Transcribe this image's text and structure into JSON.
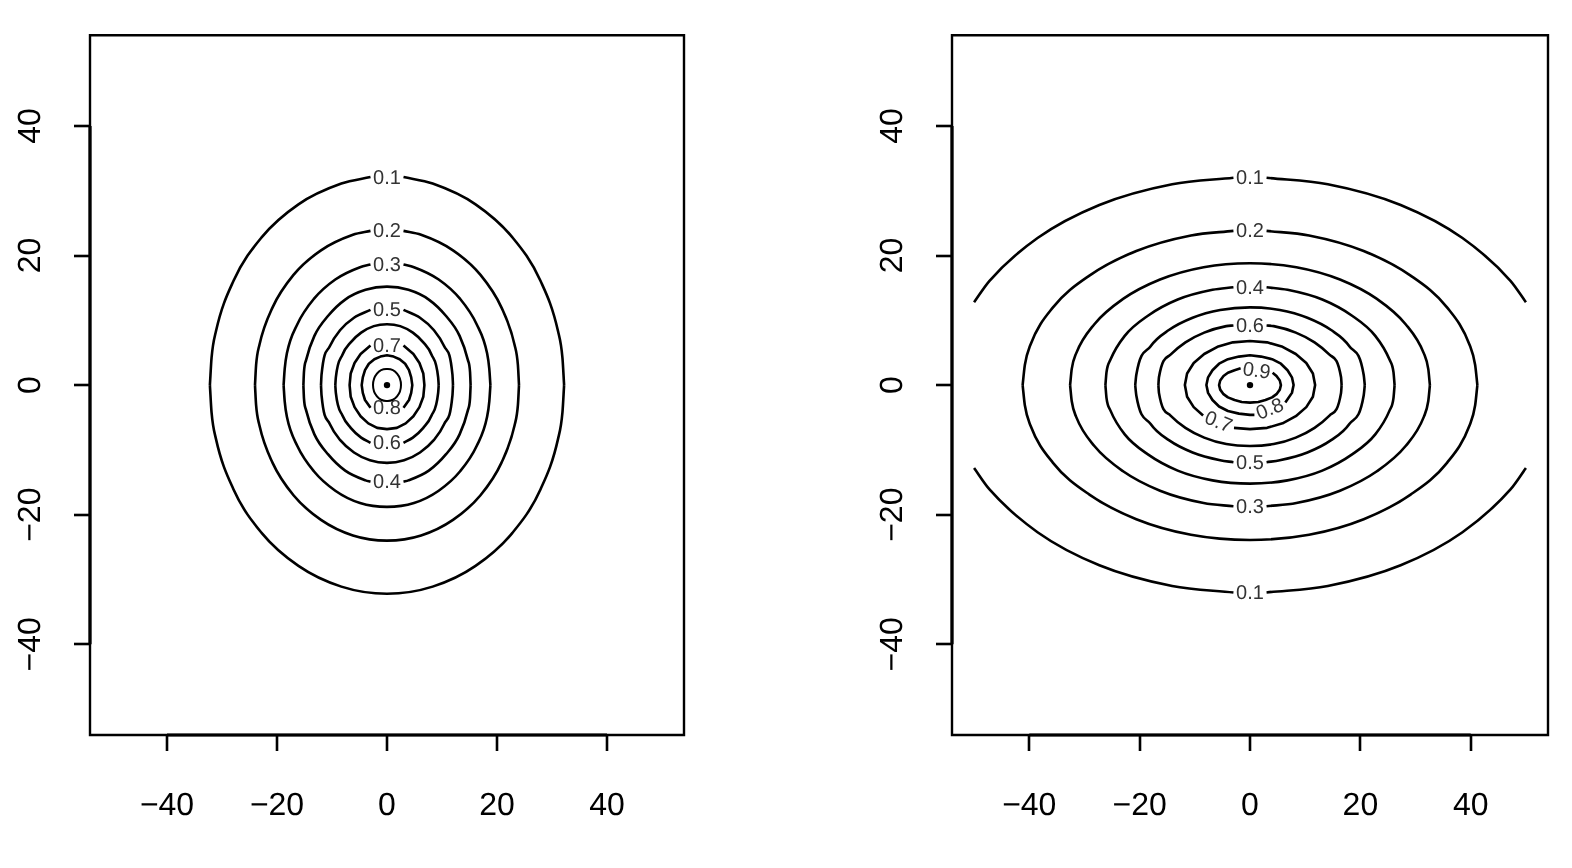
{
  "chart_data": [
    {
      "type": "line",
      "xlim": [
        -54,
        54
      ],
      "ylim": [
        -54,
        54
      ],
      "xticks": [
        -40,
        -20,
        0,
        20,
        40
      ],
      "yticks": [
        -40,
        -20,
        0,
        20,
        40
      ],
      "grid": false,
      "legend": false,
      "series": [
        {
          "name": "0.1",
          "color": "#000000",
          "x": [
            3,
            8.3,
            16.1,
            22.8,
            27.9,
            31.1,
            31.9,
            32.2
          ],
          "values": [
            32.1,
            31.1,
            27.9,
            22.8,
            16.1,
            8.3,
            4.2,
            0
          ]
        },
        {
          "color": "#000000",
          "x": [
            32.2,
            31.9,
            31.1,
            27.9,
            22.8,
            16.1,
            8.3,
            0,
            -8.3,
            -16.1,
            -22.8,
            -27.9,
            -31.1,
            -31.9,
            -32.2
          ],
          "values": [
            0,
            -4.2,
            -8.3,
            -16.1,
            -22.8,
            -27.9,
            -31.1,
            -32.2,
            -31.1,
            -27.9,
            -22.8,
            -16.1,
            -8.3,
            -4.2,
            0
          ]
        },
        {
          "color": "#000000",
          "x": [
            -32.2,
            -31.9,
            -31.1,
            -27.9,
            -22.8,
            -16.1,
            -8.3,
            -3
          ],
          "values": [
            0,
            4.2,
            8.3,
            16.1,
            22.8,
            27.9,
            31.1,
            32.1
          ]
        },
        {
          "name": "0.2",
          "color": "#000000",
          "x": [
            3,
            6.2,
            12,
            17,
            20.8,
            23.2,
            23.8,
            24
          ],
          "values": [
            23.8,
            23.2,
            20.8,
            17,
            12,
            6.2,
            3.1,
            0
          ]
        },
        {
          "color": "#000000",
          "x": [
            24,
            23.8,
            23.2,
            20.8,
            17,
            12,
            6.2,
            0,
            -6.2,
            -12,
            -17,
            -20.8,
            -23.2,
            -23.8,
            -24
          ],
          "values": [
            0,
            -3.1,
            -6.2,
            -12,
            -17,
            -20.8,
            -23.2,
            -24,
            -23.2,
            -20.8,
            -17,
            -12,
            -6.2,
            -3.1,
            0
          ]
        },
        {
          "color": "#000000",
          "x": [
            -24,
            -23.8,
            -23.2,
            -20.8,
            -17,
            -12,
            -6.2,
            -3
          ],
          "values": [
            0,
            3.1,
            6.2,
            12,
            17,
            20.8,
            23.2,
            23.8
          ]
        },
        {
          "name": "0.3",
          "color": "#000000",
          "x": [
            3,
            4.9,
            9.4,
            13.3,
            16.3,
            18.2,
            18.6,
            18.8
          ],
          "values": [
            18.6,
            18.2,
            16.3,
            13.3,
            9.4,
            4.9,
            2.5,
            0
          ]
        },
        {
          "color": "#000000",
          "x": [
            18.8,
            18.6,
            18.2,
            16.3,
            13.3,
            9.4,
            4.9,
            0,
            -4.9,
            -9.4,
            -13.3,
            -16.3,
            -18.2,
            -18.6,
            -18.8
          ],
          "values": [
            0,
            -2.5,
            -4.9,
            -9.4,
            -13.3,
            -16.3,
            -18.2,
            -18.8,
            -18.2,
            -16.3,
            -13.3,
            -9.4,
            -4.9,
            -2.5,
            0
          ]
        },
        {
          "color": "#000000",
          "x": [
            -18.8,
            -18.6,
            -18.2,
            -16.3,
            -13.3,
            -9.4,
            -4.9,
            -3
          ],
          "values": [
            0,
            2.5,
            4.9,
            9.4,
            13.3,
            16.3,
            18.2,
            18.6
          ]
        },
        {
          "name": "0.4",
          "color": "#000000",
          "x": [
            3,
            3.9,
            7.6,
            10.7,
            13.2,
            14.7,
            15.1,
            15.2
          ],
          "values": [
            -14.9,
            -14.7,
            -13.2,
            -10.7,
            -7.6,
            -3.9,
            -2,
            0
          ]
        },
        {
          "color": "#000000",
          "x": [
            15.2,
            15.1,
            14.7,
            13.2,
            10.7,
            7.6,
            3.9,
            0,
            -3.9,
            -7.6,
            -10.7,
            -13.2,
            -14.7,
            -15.1,
            -15.2
          ],
          "values": [
            0,
            2,
            3.9,
            7.6,
            10.7,
            13.2,
            14.7,
            15.2,
            14.7,
            13.2,
            10.7,
            7.6,
            3.9,
            2,
            0
          ]
        },
        {
          "color": "#000000",
          "x": [
            -15.2,
            -15.1,
            -14.7,
            -13.2,
            -10.7,
            -7.6,
            -3.9,
            -3
          ],
          "values": [
            0,
            -2,
            -3.9,
            -7.6,
            -10.7,
            -13.2,
            -14.7,
            -14.9
          ]
        },
        {
          "name": "0.5",
          "color": "#000000",
          "x": [
            3,
            6,
            8.5,
            10.4,
            11.9,
            12
          ],
          "values": [
            11.6,
            10.4,
            8.5,
            6,
            1.6,
            0
          ]
        },
        {
          "color": "#000000",
          "x": [
            12,
            11.9,
            10.4,
            8.5,
            6,
            3.1,
            0,
            -3.1,
            -6,
            -8.5,
            -10.4,
            -11.9,
            -12
          ],
          "values": [
            0,
            -1.6,
            -6,
            -8.5,
            -10.4,
            -11.6,
            -12,
            -11.6,
            -10.4,
            -8.5,
            -6,
            -1.6,
            0
          ]
        },
        {
          "color": "#000000",
          "x": [
            -12,
            -11.9,
            -10.4,
            -8.5,
            -6,
            -3
          ],
          "values": [
            0,
            1.6,
            6,
            8.5,
            10.4,
            11.6
          ]
        },
        {
          "name": "0.6",
          "color": "#000000",
          "x": [
            3,
            4.7,
            6.6,
            8.1,
            9.3,
            9.4
          ],
          "values": [
            -8.9,
            -8.1,
            -6.6,
            -4.7,
            -1.2,
            0
          ]
        },
        {
          "color": "#000000",
          "x": [
            9.4,
            9.3,
            8.1,
            6.6,
            4.7,
            2.4,
            0,
            -2.4,
            -4.7,
            -6.6,
            -8.1,
            -9.3,
            -9.4
          ],
          "values": [
            0,
            1.2,
            4.7,
            6.6,
            8.1,
            9.1,
            9.4,
            9.1,
            8.1,
            6.6,
            4.7,
            1.2,
            0
          ]
        },
        {
          "color": "#000000",
          "x": [
            -9.4,
            -9.3,
            -8.1,
            -6.6,
            -4.7,
            -3
          ],
          "values": [
            0,
            -1.2,
            -4.7,
            -6.6,
            -8.1,
            -8.9
          ]
        },
        {
          "name": "0.7",
          "color": "#000000",
          "x": [
            3,
            4.8,
            5.9,
            6.6,
            6.8,
            6.6,
            5.9,
            4.8,
            3.4,
            1.8,
            0,
            -1.8,
            -3.4,
            -4.8,
            -5.9,
            -6.6,
            -6.8,
            -6.6,
            -5.9,
            -4.8,
            -3
          ],
          "values": [
            6.1,
            4.8,
            3.4,
            1.8,
            0,
            -1.8,
            -3.4,
            -4.8,
            -5.9,
            -6.6,
            -6.8,
            -6.6,
            -5.9,
            -4.8,
            -3.4,
            -1.8,
            0,
            1.8,
            3.4,
            4.8,
            6.1
          ]
        },
        {
          "name": "0.8",
          "color": "#000000",
          "x": [
            3,
            4,
            4.4,
            4.6,
            4.4,
            4,
            3.3,
            2.3,
            1.2,
            0,
            -1.2,
            -2.3,
            -3.3,
            -4,
            -4.4,
            -4.6,
            -4.4,
            -4,
            -3
          ],
          "values": [
            -3.5,
            -2.3,
            -1.2,
            0,
            1.2,
            2.3,
            3.3,
            4,
            4.4,
            4.6,
            4.4,
            4,
            3.3,
            2.3,
            1.2,
            0,
            -1.2,
            -2.3,
            -3.5
          ]
        },
        {
          "type": "scatter",
          "color": "#000000",
          "x": [
            0
          ],
          "values": [
            0
          ]
        }
      ]
    },
    {
      "type": "line",
      "xlim": [
        -54,
        54
      ],
      "ylim": [
        -54,
        54
      ],
      "xticks": [
        -40,
        -20,
        0,
        20,
        40
      ],
      "yticks": [
        -40,
        -20,
        0,
        20,
        40
      ],
      "grid": false,
      "legend": false,
      "series": [
        {
          "name": "0.1",
          "color": "#000000",
          "x": [
            3,
            14.1,
            27.3,
            38.5,
            47.2,
            50
          ],
          "values": [
            32,
            31,
            27.8,
            22.7,
            16.1,
            12.8
          ]
        },
        {
          "color": "#000000",
          "x": [
            -3,
            -14.1,
            -27.3,
            -38.5,
            -47.2,
            -50
          ],
          "values": [
            32,
            31,
            27.8,
            22.7,
            16.1,
            12.8
          ]
        },
        {
          "color": "#000000",
          "x": [
            -50,
            -47.2,
            -38.5,
            -27.3,
            -14.1,
            -3
          ],
          "values": [
            -12.8,
            -16.1,
            -22.7,
            -27.8,
            -31,
            -32
          ]
        },
        {
          "name": "0.1",
          "color": "#000000",
          "x": [
            3,
            14.1,
            27.3,
            38.5,
            47.2,
            50
          ],
          "values": [
            -32,
            -31,
            -27.8,
            -22.7,
            -16.1,
            -12.8
          ]
        },
        {
          "name": "0.2",
          "color": "#000000",
          "x": [
            3,
            10.7,
            20.6,
            29.1,
            35.7,
            39.8,
            40.8,
            41.2
          ],
          "values": [
            23.8,
            23.1,
            20.7,
            16.9,
            12,
            6.2,
            3.1,
            0
          ]
        },
        {
          "color": "#000000",
          "x": [
            41.2,
            40.8,
            39.8,
            35.7,
            29.1,
            20.6,
            10.7,
            0,
            -10.7,
            -20.6,
            -29.1,
            -35.7,
            -39.8,
            -40.8,
            -41.2
          ],
          "values": [
            0,
            -3.1,
            -6.2,
            -12,
            -16.9,
            -20.7,
            -23.1,
            -23.9,
            -23.1,
            -20.7,
            -16.9,
            -12,
            -6.2,
            -3.1,
            0
          ]
        },
        {
          "color": "#000000",
          "x": [
            -41.2,
            -40.8,
            -39.8,
            -35.7,
            -29.1,
            -20.6,
            -10.7,
            -3
          ],
          "values": [
            0,
            3.1,
            6.2,
            12,
            16.9,
            20.7,
            23.1,
            23.8
          ]
        },
        {
          "name": "0.3",
          "color": "#000000",
          "x": [
            3,
            8.4,
            16.3,
            23,
            28.2,
            31.5,
            32.3,
            32.6
          ],
          "values": [
            -18.7,
            -18.2,
            -16.3,
            -13.3,
            -9.4,
            -4.9,
            -2.5,
            0
          ]
        },
        {
          "color": "#000000",
          "x": [
            32.6,
            32.3,
            31.5,
            28.2,
            23,
            16.3,
            8.4,
            0,
            -8.4,
            -16.3,
            -23,
            -28.2,
            -31.5,
            -32.3,
            -32.6
          ],
          "values": [
            0,
            2.5,
            4.9,
            9.4,
            13.3,
            16.3,
            18.2,
            18.8,
            18.2,
            16.3,
            13.3,
            9.4,
            4.9,
            2.5,
            0
          ]
        },
        {
          "color": "#000000",
          "x": [
            -32.6,
            -32.3,
            -31.5,
            -28.2,
            -23,
            -16.3,
            -8.4,
            -3
          ],
          "values": [
            0,
            -2.5,
            -4.9,
            -9.4,
            -13.3,
            -16.3,
            -18.2,
            -18.7
          ]
        },
        {
          "name": "0.4",
          "color": "#000000",
          "x": [
            3,
            6.8,
            13.1,
            18.5,
            22.7,
            25.3,
            26,
            26.2
          ],
          "values": [
            15.1,
            14.7,
            13.2,
            10.7,
            7.6,
            3.9,
            2,
            0
          ]
        },
        {
          "color": "#000000",
          "x": [
            26.2,
            26,
            25.3,
            22.7,
            18.5,
            13.1,
            6.8,
            0,
            -6.8,
            -13.1,
            -18.5,
            -22.7,
            -25.3,
            -26,
            -26.2
          ],
          "values": [
            0,
            -2,
            -3.9,
            -7.6,
            -10.7,
            -13.2,
            -14.7,
            -15.2,
            -14.7,
            -13.2,
            -10.7,
            -7.6,
            -3.9,
            -2,
            0
          ]
        },
        {
          "color": "#000000",
          "x": [
            -26.2,
            -26,
            -25.3,
            -22.7,
            -18.5,
            -13.1,
            -6.8,
            -3
          ],
          "values": [
            0,
            2,
            3.9,
            7.6,
            10.7,
            13.2,
            14.7,
            15.1
          ]
        },
        {
          "name": "0.5",
          "color": "#000000",
          "x": [
            3,
            5.4,
            10.4,
            14.7,
            18,
            20.6,
            20.8
          ],
          "values": [
            -11.9,
            -11.6,
            -10.4,
            -8.5,
            -6,
            -1.6,
            0
          ]
        },
        {
          "color": "#000000",
          "x": [
            20.8,
            20.6,
            18,
            14.7,
            10.4,
            5.4,
            0,
            -5.4,
            -10.4,
            -14.7,
            -18,
            -20.6,
            -20.8
          ],
          "values": [
            0,
            1.6,
            6,
            8.5,
            10.4,
            11.6,
            12,
            11.6,
            10.4,
            8.5,
            6,
            1.6,
            0
          ]
        },
        {
          "color": "#000000",
          "x": [
            -20.8,
            -20.6,
            -18,
            -14.7,
            -10.4,
            -5.4,
            -3
          ],
          "values": [
            0,
            -1.6,
            -6,
            -8.5,
            -10.4,
            -11.6,
            -11.9
          ]
        },
        {
          "name": "0.6",
          "color": "#000000",
          "x": [
            3,
            4.3,
            8.3,
            11.7,
            14.4,
            16.5,
            16.6
          ],
          "values": [
            9.2,
            9.1,
            8.1,
            6.6,
            4.7,
            1.2,
            0
          ]
        },
        {
          "color": "#000000",
          "x": [
            16.6,
            16.5,
            14.4,
            11.7,
            8.3,
            4.3,
            0,
            -4.3,
            -8.3,
            -11.7,
            -14.4,
            -16.5,
            -16.6
          ],
          "values": [
            0,
            -1.2,
            -4.7,
            -6.6,
            -8.1,
            -9.1,
            -9.4,
            -9.1,
            -8.1,
            -6.6,
            -4.7,
            -1.2,
            0
          ]
        },
        {
          "color": "#000000",
          "x": [
            -16.6,
            -16.5,
            -14.4,
            -11.7,
            -8.3,
            -4.3,
            -3
          ],
          "values": [
            0,
            1.2,
            4.7,
            6.6,
            8.1,
            9.1,
            9.2
          ]
        },
        {
          "name": "0.7",
          "color": "#000000",
          "x": [
            -2.9,
            0,
            3.1,
            5.9,
            8.3,
            10.2,
            11.4,
            11.8,
            11.4,
            10.2,
            8.3,
            5.9,
            3.1,
            0,
            -3.1,
            -5.9,
            -8.3,
            -10.2,
            -11.4,
            -11.8,
            -11.4,
            -10.2,
            -8.5
          ],
          "values": [
            -6.6,
            -6.8,
            -6.6,
            -5.9,
            -4.8,
            -3.4,
            -1.8,
            0,
            1.8,
            3.4,
            4.8,
            5.9,
            6.6,
            6.8,
            6.6,
            5.9,
            4.8,
            3.4,
            1.8,
            0,
            -1.8,
            -3.4,
            -4.7
          ]
        },
        {
          "name": "0.8",
          "color": "#000000",
          "x": [
            6.4,
            7.6,
            7.9,
            7.6,
            6.8,
            5.6,
            4,
            2,
            0,
            -2,
            -4,
            -5.6,
            -6.8,
            -7.6,
            -7.9,
            -7.6,
            -6.8,
            -5.6,
            -4,
            -2,
            0,
            0.8
          ],
          "values": [
            -2.7,
            -1.2,
            0,
            1.2,
            2.3,
            3.3,
            4,
            4.4,
            4.6,
            4.4,
            4,
            3.3,
            2.3,
            1.2,
            0,
            -1.2,
            -2.3,
            -3.3,
            -4,
            -4.4,
            -4.6,
            -4.6
          ]
        },
        {
          "name": "0.9",
          "color": "#000000",
          "x": [
            -1.7,
            -2.8,
            -4,
            -4.8,
            -5.4,
            -5.6,
            -5.4,
            -4.8,
            -4,
            -2.8,
            -1.5,
            0,
            1.5,
            2.8,
            4,
            4.8,
            5.4,
            5.6,
            5.4,
            4.8,
            4.1
          ],
          "values": [
            2.6,
            2.3,
            1.9,
            1.4,
            0.7,
            0,
            -0.7,
            -1.4,
            -1.9,
            -2.3,
            -2.6,
            -2.7,
            -2.6,
            -2.3,
            -1.9,
            -1.4,
            -0.7,
            0,
            0.7,
            1.4,
            1.9
          ]
        },
        {
          "type": "scatter",
          "color": "#000000",
          "x": [
            0
          ],
          "values": [
            0
          ]
        }
      ]
    }
  ]
}
